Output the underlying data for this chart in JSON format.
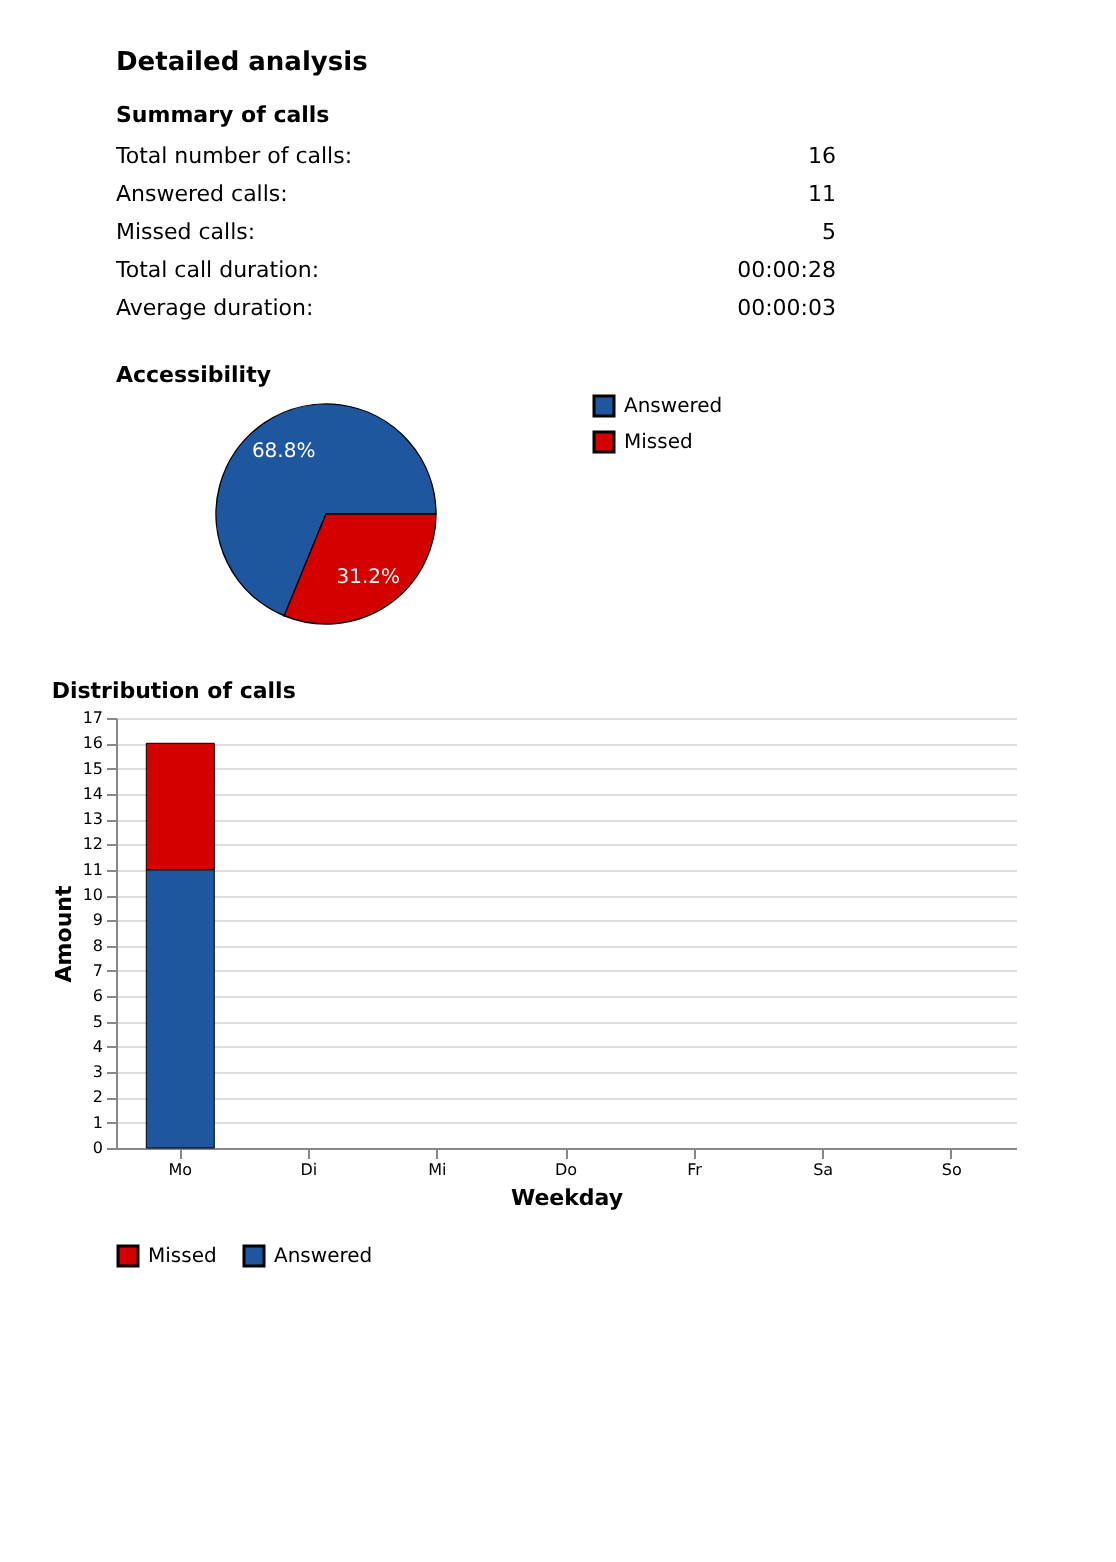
{
  "chart_data": [
    {
      "type": "other",
      "title": "Detailed analysis",
      "subtitle": "Summary of calls",
      "annotations": [
        "Total number of calls:",
        "16",
        "Answered calls:",
        "11",
        "Missed calls:",
        "5",
        "Total call duration:",
        "00:00:28",
        "Average duration:",
        "00:00:03"
      ]
    },
    {
      "type": "pie",
      "title": "Accessibility",
      "categories": [
        "Answered",
        "Missed"
      ],
      "values": [
        68.8,
        31.2
      ],
      "colors": [
        "#1f56a0",
        "#d40000"
      ],
      "value_labels": [
        "68.8%",
        "31.2%"
      ],
      "legend": "right"
    },
    {
      "type": "bar",
      "title": "Distribution of calls",
      "xlabel": "Weekday",
      "ylabel": "Amount",
      "stacked": true,
      "categories": [
        "Mo",
        "Di",
        "Mi",
        "Do",
        "Fr",
        "Sa",
        "So"
      ],
      "series": [
        {
          "name": "Answered",
          "color": "#1f56a0",
          "values": [
            11,
            0,
            0,
            0,
            0,
            0,
            0
          ]
        },
        {
          "name": "Missed",
          "color": "#d40000",
          "values": [
            5,
            0,
            0,
            0,
            0,
            0,
            0
          ]
        }
      ],
      "ylim": [
        0,
        17
      ],
      "yticks": [
        0,
        1,
        2,
        3,
        4,
        5,
        6,
        7,
        8,
        9,
        10,
        11,
        12,
        13,
        14,
        15,
        16,
        17
      ],
      "grid": "y",
      "legend": "bottom"
    }
  ]
}
